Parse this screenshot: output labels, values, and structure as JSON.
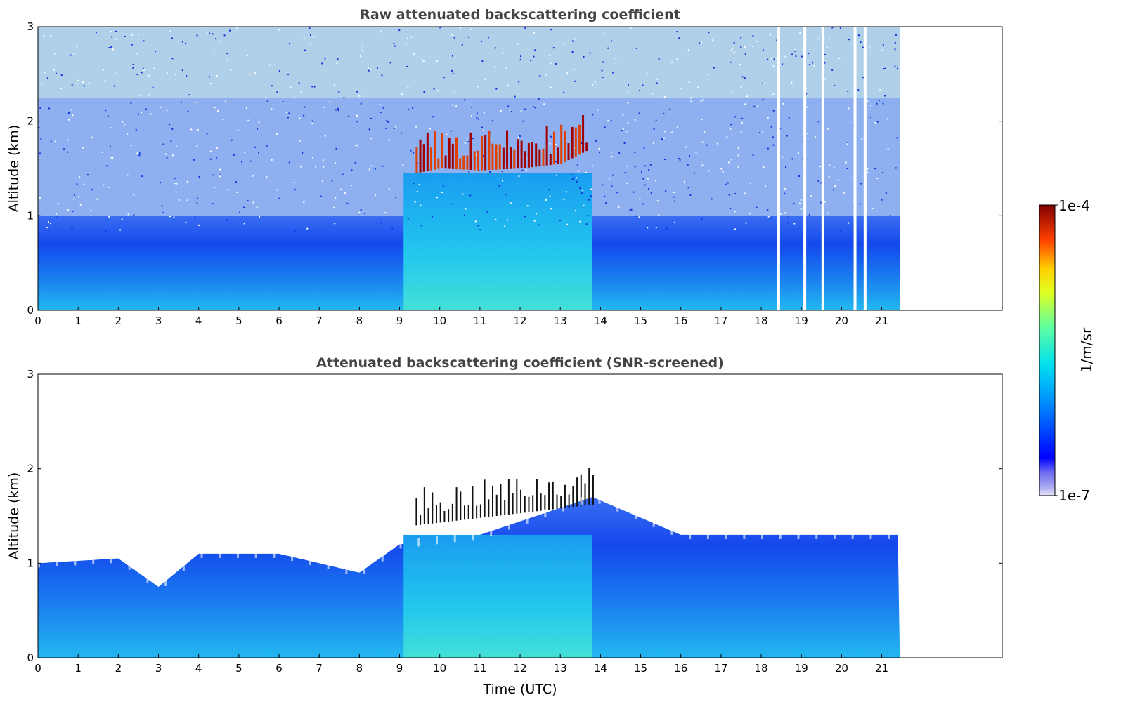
{
  "chart_data": [
    {
      "type": "heatmap",
      "title": "Raw attenuated backscattering coefficient",
      "xlabel": "",
      "ylabel": "Altitude (km)",
      "xlim": [
        0,
        24
      ],
      "ylim": [
        0,
        3
      ],
      "xticks": [
        0,
        1,
        2,
        3,
        4,
        5,
        6,
        7,
        8,
        9,
        10,
        11,
        12,
        13,
        14,
        15,
        16,
        17,
        18,
        19,
        20,
        21
      ],
      "yticks": [
        0,
        1,
        2,
        3
      ],
      "data_extent_hours": [
        0,
        21.45
      ],
      "cloud_base_km_by_hour": [
        [
          9.4,
          1.45
        ],
        [
          10,
          1.5
        ],
        [
          11,
          1.48
        ],
        [
          12,
          1.5
        ],
        [
          13,
          1.55
        ],
        [
          13.7,
          1.7
        ]
      ],
      "data_gaps_hours": [
        18.4,
        19.05,
        19.5,
        20.3,
        20.55
      ]
    },
    {
      "type": "heatmap",
      "title": "Attenuated backscattering coefficient (SNR-screened)",
      "xlabel": "Time (UTC)",
      "ylabel": "Altitude (km)",
      "xlim": [
        0,
        24
      ],
      "ylim": [
        0,
        3
      ],
      "xticks": [
        0,
        1,
        2,
        3,
        4,
        5,
        6,
        7,
        8,
        9,
        10,
        11,
        12,
        13,
        14,
        15,
        16,
        17,
        18,
        19,
        20,
        21
      ],
      "yticks": [
        0,
        1,
        2,
        3
      ],
      "data_extent_hours": [
        0,
        21.45
      ],
      "boundary_layer_top_km_by_hour": [
        [
          0,
          1.0
        ],
        [
          2,
          1.05
        ],
        [
          3,
          0.75
        ],
        [
          4,
          1.1
        ],
        [
          6,
          1.1
        ],
        [
          8,
          0.9
        ],
        [
          9,
          1.2
        ],
        [
          11,
          1.3
        ],
        [
          13.8,
          1.7
        ],
        [
          16,
          1.3
        ],
        [
          18,
          1.3
        ],
        [
          21.4,
          1.3
        ]
      ]
    }
  ],
  "colorbar": {
    "label": "1/m/sr",
    "min_label": "1e-7",
    "max_label": "1e-4",
    "scale": "log"
  }
}
